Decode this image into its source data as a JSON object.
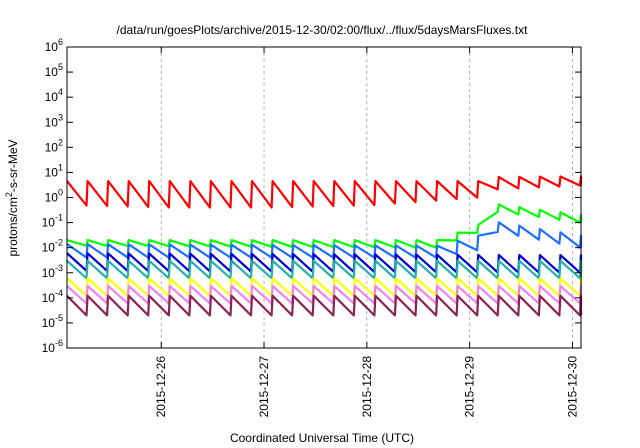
{
  "chart_data": {
    "type": "line",
    "title": "/data/run/goesPlots/archive/2015-12-30/02:00/flux/../flux/5daysMarsFluxes.txt",
    "xlabel": "Coordinated Universal Time (UTC)",
    "ylabel": {
      "prefix": "protons/cm",
      "sup": "2",
      "suffix": "-s-sr-MeV"
    },
    "y_scale": "log",
    "ylim": [
      1e-06,
      1000000.0
    ],
    "y_ticks": [
      {
        "base": "10",
        "exp": "-6",
        "value": 1e-06
      },
      {
        "base": "10",
        "exp": "-5",
        "value": 1e-05
      },
      {
        "base": "10",
        "exp": "-4",
        "value": 0.0001
      },
      {
        "base": "10",
        "exp": "-3",
        "value": 0.001
      },
      {
        "base": "10",
        "exp": "-2",
        "value": 0.01
      },
      {
        "base": "10",
        "exp": "-1",
        "value": 0.1
      },
      {
        "base": "10",
        "exp": "0",
        "value": 1
      },
      {
        "base": "10",
        "exp": "1",
        "value": 10
      },
      {
        "base": "10",
        "exp": "2",
        "value": 100
      },
      {
        "base": "10",
        "exp": "3",
        "value": 1000
      },
      {
        "base": "10",
        "exp": "4",
        "value": 10000
      },
      {
        "base": "10",
        "exp": "5",
        "value": 100000
      },
      {
        "base": "10",
        "exp": "6",
        "value": 1000000
      }
    ],
    "x_date_range": [
      "2015-12-25 02:00",
      "2015-12-30 02:00"
    ],
    "x_ticks": [
      "2015-12-26",
      "2015-12-27",
      "2015-12-28",
      "2015-12-29",
      "2015-12-30"
    ],
    "grid": "vertical dashed at day ticks",
    "legend": "none",
    "series": [
      {
        "color": "#ff0000",
        "days": [
          0,
          1.0,
          2.0,
          3.0,
          4.0,
          4.05,
          5.0
        ],
        "base": [
          2.2,
          0.5,
          0.4,
          0.5,
          2.0,
          3.0,
          5.0
        ],
        "peak": [
          4.5,
          4.5,
          4.5,
          4.5,
          4.5,
          6.5,
          7.0
        ],
        "lows": [
          0.5,
          0.4,
          0.4,
          0.5,
          1.0,
          2.0,
          3.0
        ]
      },
      {
        "color": "#00ff00",
        "days": [
          0,
          3.6,
          4.0,
          4.1,
          5.0
        ],
        "base": [
          0.02,
          0.015,
          0.06,
          0.6,
          0.12
        ],
        "peak": [
          0.02,
          0.02,
          0.08,
          0.6,
          0.2
        ],
        "lows": [
          0.012,
          0.01,
          0.04,
          0.3,
          0.1
        ]
      },
      {
        "color": "#1e6fff",
        "days": [
          0,
          3.6,
          4.0,
          4.1,
          5.0
        ],
        "base": [
          0.012,
          0.008,
          0.02,
          0.12,
          0.01
        ],
        "peak": [
          0.014,
          0.012,
          0.03,
          0.12,
          0.03
        ],
        "lows": [
          0.004,
          0.004,
          0.008,
          0.05,
          0.01
        ]
      },
      {
        "color": "#0000cc",
        "days": [
          0,
          5.0
        ],
        "base": [
          0.005,
          0.003
        ],
        "peak": [
          0.006,
          0.005
        ],
        "lows": [
          0.0012,
          0.001
        ]
      },
      {
        "color": "#20b2aa",
        "days": [
          0,
          5.0
        ],
        "base": [
          0.0025,
          0.002
        ],
        "peak": [
          0.003,
          0.003
        ],
        "lows": [
          0.0006,
          0.0006
        ]
      },
      {
        "color": "#ffff00",
        "days": [
          0,
          5.0
        ],
        "base": [
          0.0006,
          0.0005
        ],
        "peak": [
          0.0006,
          0.0006
        ],
        "lows": [
          0.00012,
          0.00012
        ]
      },
      {
        "color": "#ee82ee",
        "days": [
          0,
          5.0
        ],
        "base": [
          0.0003,
          0.0003
        ],
        "peak": [
          0.0003,
          0.0003
        ],
        "lows": [
          6e-05,
          6e-05
        ]
      },
      {
        "color": "#8b2252",
        "days": [
          0,
          5.0
        ],
        "base": [
          0.00012,
          0.0001
        ],
        "peak": [
          0.00012,
          0.00012
        ],
        "lows": [
          2e-05,
          2e-05
        ]
      }
    ]
  }
}
